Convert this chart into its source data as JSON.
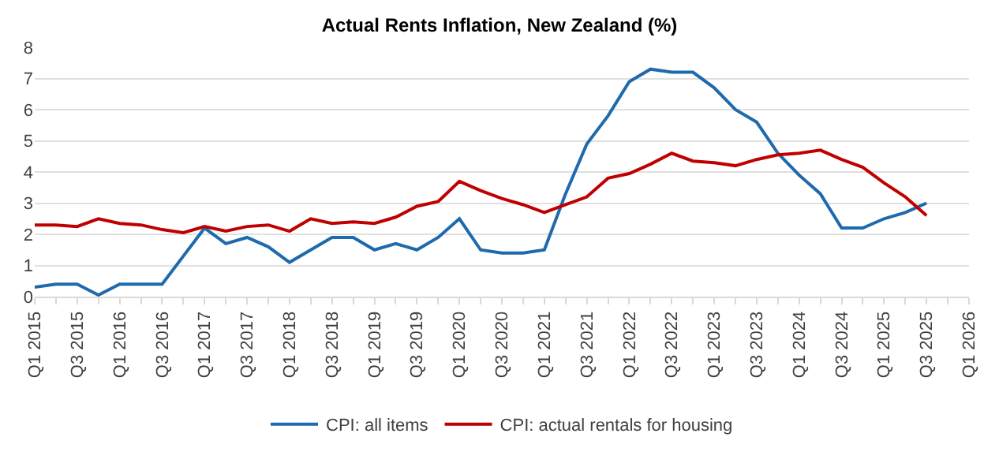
{
  "chart_data": {
    "type": "line",
    "title": "Actual Rents Inflation, New Zealand (%)",
    "categories": [
      "Q1 2015",
      null,
      "Q3 2015",
      null,
      "Q1 2016",
      null,
      "Q3 2016",
      null,
      "Q1 2017",
      null,
      "Q3 2017",
      null,
      "Q1 2018",
      null,
      "Q3 2018",
      null,
      "Q1 2019",
      null,
      "Q3 2019",
      null,
      "Q1 2020",
      null,
      "Q3 2020",
      null,
      "Q1 2021",
      null,
      "Q3 2021",
      null,
      "Q1 2022",
      null,
      "Q3 2022",
      null,
      "Q1 2023",
      null,
      "Q3 2023",
      null,
      "Q1 2024",
      null,
      "Q3 2024",
      null,
      "Q1 2025",
      null,
      "Q3 2025",
      null,
      "Q1 2026"
    ],
    "series": [
      {
        "name": "CPI: all items",
        "color": "#1f6aad",
        "values": [
          0.3,
          0.4,
          0.4,
          0.05,
          0.4,
          0.4,
          0.4,
          1.3,
          2.2,
          1.7,
          1.9,
          1.6,
          1.1,
          1.5,
          1.9,
          1.9,
          1.5,
          1.7,
          1.5,
          1.9,
          2.5,
          1.5,
          1.4,
          1.4,
          1.5,
          3.3,
          4.9,
          5.8,
          6.9,
          7.3,
          7.2,
          7.2,
          6.7,
          6.0,
          5.6,
          4.6,
          3.9,
          3.3,
          2.2,
          2.2,
          2.5,
          2.7,
          3.0,
          null,
          null
        ]
      },
      {
        "name": "CPI: actual rentals for housing",
        "color": "#c00000",
        "values": [
          2.3,
          2.3,
          2.25,
          2.5,
          2.35,
          2.3,
          2.15,
          2.05,
          2.25,
          2.1,
          2.25,
          2.3,
          2.1,
          2.5,
          2.35,
          2.4,
          2.35,
          2.55,
          2.9,
          3.05,
          3.7,
          3.4,
          3.15,
          2.95,
          2.7,
          2.95,
          3.2,
          3.8,
          3.95,
          4.25,
          4.6,
          4.35,
          4.3,
          4.2,
          4.4,
          4.55,
          4.6,
          4.7,
          4.4,
          4.15,
          3.65,
          3.2,
          2.6,
          null,
          null
        ]
      }
    ],
    "ylim": [
      0,
      8
    ],
    "yticks": [
      0,
      1,
      2,
      3,
      4,
      5,
      6,
      7,
      8
    ],
    "grid": "y",
    "legend": "bottom",
    "marker": "none",
    "line_style": "solid"
  }
}
